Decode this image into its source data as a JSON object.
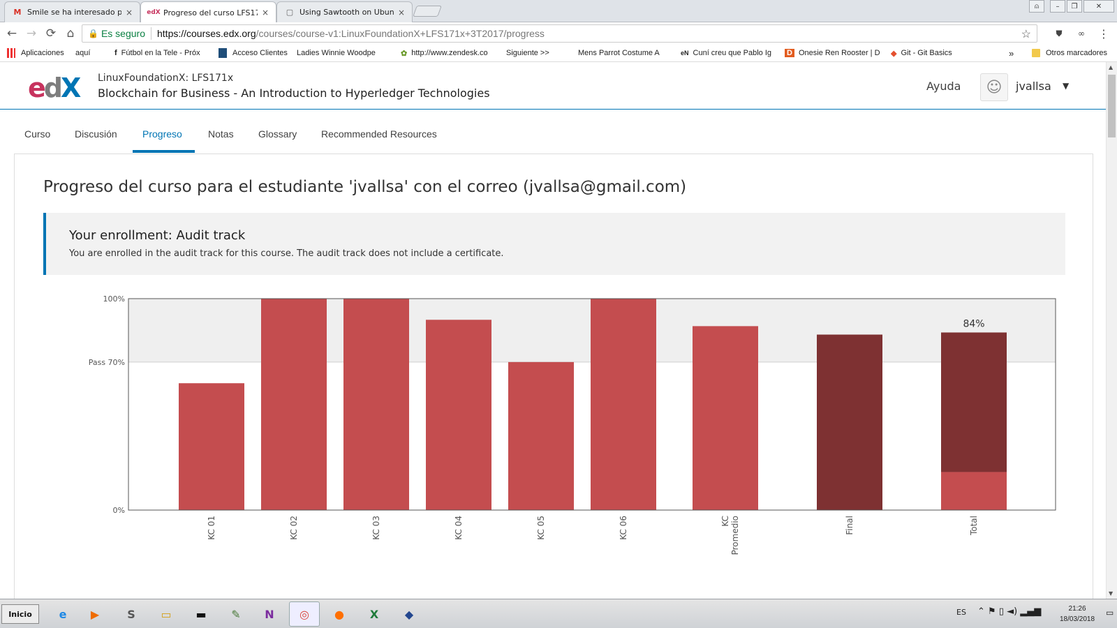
{
  "browser": {
    "tabs": [
      {
        "favicon": "M",
        "favicon_color": "#d93025",
        "title": "Smile se ha interesado por",
        "active": false
      },
      {
        "favicon": "edX",
        "favicon_color": "#c7335e",
        "title": "Progreso del curso LFS171x",
        "active": true
      },
      {
        "favicon": "▢",
        "favicon_color": "#666666",
        "title": "Using Sawtooth on Ubuntu",
        "active": false
      }
    ],
    "close_glyph": "×",
    "window_controls": {
      "user": "⍝",
      "minimize": "–",
      "maximize": "❐",
      "close": "✕"
    },
    "nav": {
      "back": "←",
      "forward": "→",
      "reload": "⟳",
      "home": "⌂"
    },
    "address": {
      "secure_label": "Es seguro",
      "host": "https://courses.edx.org",
      "path": "/courses/course-v1:LinuxFoundationX+LFS171x+3T2017/progress"
    },
    "bookmarks": [
      {
        "icon": "apps",
        "label": "Aplicaciones"
      },
      {
        "icon": "page",
        "label": "aquí"
      },
      {
        "icon": "f",
        "label": "Fútbol en la Tele - Próx"
      },
      {
        "icon": "flag",
        "label": "Acceso Clientes"
      },
      {
        "icon": "page",
        "label": "Ladies Winnie Woodpe"
      },
      {
        "icon": "gear",
        "label": "http://www.zendesk.co"
      },
      {
        "icon": "page",
        "label": "Siguiente >>"
      },
      {
        "icon": "page",
        "label": "Mens Parrot Costume A"
      },
      {
        "icon": "eN",
        "label": "Cuní creu que Pablo Ig"
      },
      {
        "icon": "D",
        "label": "Onesie Ren Rooster | D"
      },
      {
        "icon": "git",
        "label": "Git - Git Basics"
      }
    ],
    "bookmarks_more": "»",
    "other_bookmarks": "Otros marcadores"
  },
  "site": {
    "logo": {
      "e": "e",
      "d": "d",
      "x": "X"
    },
    "course_org": "LinuxFoundationX: LFS171x",
    "course_name": "Blockchain for Business - An Introduction to Hyperledger Technologies",
    "help_label": "Ayuda",
    "username": "jvallsa",
    "course_tabs": [
      "Curso",
      "Discusión",
      "Progreso",
      "Notas",
      "Glossary",
      "Recommended Resources"
    ],
    "active_tab": "Progreso"
  },
  "progress": {
    "title": "Progreso del curso para el estudiante 'jvallsa' con el correo (jvallsa@gmail.com)",
    "enrollment_title": "Your enrollment: Audit track",
    "enrollment_message": "You are enrolled in the audit track for this course. The audit track does not include a certificate."
  },
  "chart_data": {
    "type": "bar",
    "categories": [
      "KC 01",
      "KC 02",
      "KC 03",
      "KC 04",
      "KC 05",
      "KC 06",
      "KC Promedio",
      "Final",
      "Total"
    ],
    "values": [
      60,
      100,
      100,
      90,
      70,
      100,
      87,
      83,
      84
    ],
    "total_breakdown": {
      "final_part": 66,
      "kc_part": 18
    },
    "total_label": "84%",
    "pass_line": 70,
    "pass_label": "Pass 70%",
    "ytick_top": "100%",
    "ytick_bottom": "0%",
    "ylim": [
      0,
      100
    ],
    "colors": {
      "kc": "#c44d4f",
      "final": "#7e3132",
      "band": "#efefef"
    }
  },
  "taskbar": {
    "start_label": "Inicio",
    "apps": [
      "e",
      "▶",
      "S",
      "▭",
      "▬",
      "✎",
      "N",
      "◎",
      "●",
      "X",
      "◆"
    ],
    "lang": "ES",
    "time": "21:26",
    "date": "18/03/2018"
  }
}
